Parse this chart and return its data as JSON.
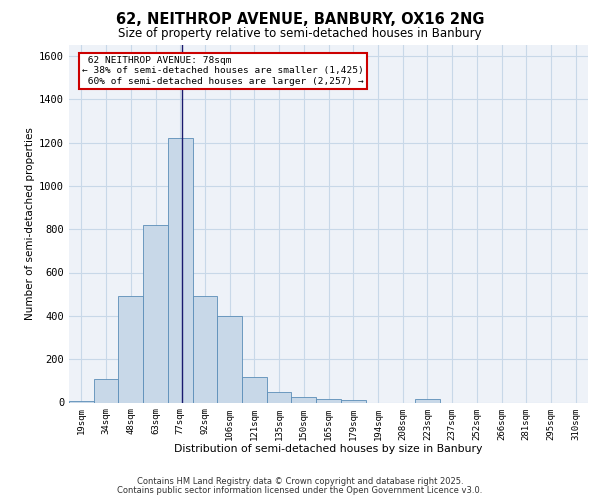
{
  "title_line1": "62, NEITHROP AVENUE, BANBURY, OX16 2NG",
  "title_line2": "Size of property relative to semi-detached houses in Banbury",
  "xlabel": "Distribution of semi-detached houses by size in Banbury",
  "ylabel": "Number of semi-detached properties",
  "categories": [
    "19sqm",
    "34sqm",
    "48sqm",
    "63sqm",
    "77sqm",
    "92sqm",
    "106sqm",
    "121sqm",
    "135sqm",
    "150sqm",
    "165sqm",
    "179sqm",
    "194sqm",
    "208sqm",
    "223sqm",
    "237sqm",
    "252sqm",
    "266sqm",
    "281sqm",
    "295sqm",
    "310sqm"
  ],
  "values": [
    5,
    110,
    490,
    820,
    1220,
    490,
    400,
    120,
    50,
    25,
    15,
    10,
    0,
    0,
    15,
    0,
    0,
    0,
    0,
    0,
    0
  ],
  "bar_color": "#c8d8e8",
  "bar_edge_color": "#5b8db8",
  "property_label": "62 NEITHROP AVENUE: 78sqm",
  "pct_smaller": 38,
  "pct_larger": 60,
  "num_smaller": "1,425",
  "num_larger": "2,257",
  "vline_color": "#1a1a6e",
  "ylim": [
    0,
    1650
  ],
  "yticks": [
    0,
    200,
    400,
    600,
    800,
    1000,
    1200,
    1400,
    1600
  ],
  "grid_color": "#c8d8e8",
  "bg_color": "#eef2f8",
  "footer_line1": "Contains HM Land Registry data © Crown copyright and database right 2025.",
  "footer_line2": "Contains public sector information licensed under the Open Government Licence v3.0."
}
